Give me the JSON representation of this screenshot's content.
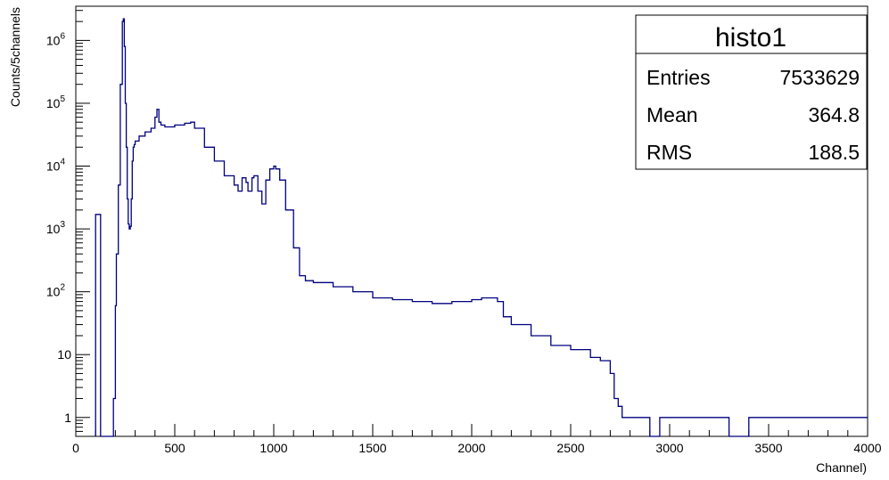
{
  "chart_data": {
    "type": "line",
    "title": "",
    "xlabel": "Channel)",
    "ylabel": "Counts/5channels",
    "xlim": [
      0,
      4000
    ],
    "ylim": [
      0.5,
      3500000
    ],
    "yscale": "log",
    "grid": false,
    "line_color": "#00007f",
    "x_ticks": [
      "0",
      "500",
      "1000",
      "1500",
      "2000",
      "2500",
      "3000",
      "3500",
      "4000"
    ],
    "y_ticks": [
      {
        "value": 1,
        "label": "1",
        "exp": ""
      },
      {
        "value": 10,
        "label": "10",
        "exp": ""
      },
      {
        "value": 100,
        "label": "10",
        "exp": "2"
      },
      {
        "value": 1000,
        "label": "10",
        "exp": "3"
      },
      {
        "value": 10000,
        "label": "10",
        "exp": "4"
      },
      {
        "value": 100000,
        "label": "10",
        "exp": "5"
      },
      {
        "value": 1000000,
        "label": "10",
        "exp": "6"
      }
    ],
    "series": [
      {
        "x": [
          100,
          120,
          125,
          150,
          170,
          190,
          200,
          205,
          215,
          225,
          235,
          240,
          245,
          250,
          255,
          260,
          265,
          270,
          275,
          280,
          285,
          290,
          295,
          300,
          320,
          350,
          380,
          400,
          410,
          420,
          430,
          450,
          500,
          550,
          580,
          600,
          650,
          700,
          750,
          800,
          820,
          840,
          860,
          870,
          890,
          900,
          920,
          940,
          960,
          980,
          1000,
          1010,
          1030,
          1060,
          1100,
          1130,
          1160,
          1200,
          1300,
          1400,
          1500,
          1600,
          1700,
          1800,
          1900,
          2000,
          2050,
          2100,
          2130,
          2160,
          2200,
          2300,
          2400,
          2500,
          2600,
          2650,
          2700,
          2720,
          2740,
          2760,
          2800,
          2850,
          2900,
          2950,
          3000,
          3100,
          3200,
          3300,
          3400,
          3500,
          3600,
          3700,
          3800,
          3900,
          4000
        ],
        "y": [
          1700,
          1700,
          0.5,
          0.5,
          0.5,
          2,
          60,
          400,
          5000,
          200000,
          2000000,
          2200000,
          800000,
          100000,
          20000,
          3000,
          1200,
          1000,
          1100,
          3000,
          12000,
          20000,
          22000,
          25000,
          30000,
          35000,
          40000,
          60000,
          80000,
          50000,
          45000,
          42000,
          45000,
          48000,
          50000,
          40000,
          20000,
          12000,
          7000,
          5000,
          4000,
          6500,
          5500,
          4000,
          6500,
          7000,
          4000,
          2500,
          6000,
          9000,
          10000,
          9000,
          6000,
          2000,
          500,
          180,
          150,
          140,
          120,
          100,
          80,
          75,
          70,
          65,
          70,
          75,
          80,
          80,
          70,
          40,
          30,
          20,
          14,
          12,
          9,
          8,
          5,
          2,
          1.5,
          1,
          1,
          1,
          0.5,
          1,
          1,
          1,
          1,
          0.5,
          1,
          1,
          1,
          1,
          1,
          1,
          1
        ]
      }
    ]
  },
  "stats": {
    "title": "histo1",
    "rows": [
      {
        "label": "Entries",
        "value": "7533629"
      },
      {
        "label": "Mean",
        "value": "364.8"
      },
      {
        "label": "RMS",
        "value": "188.5"
      }
    ]
  }
}
